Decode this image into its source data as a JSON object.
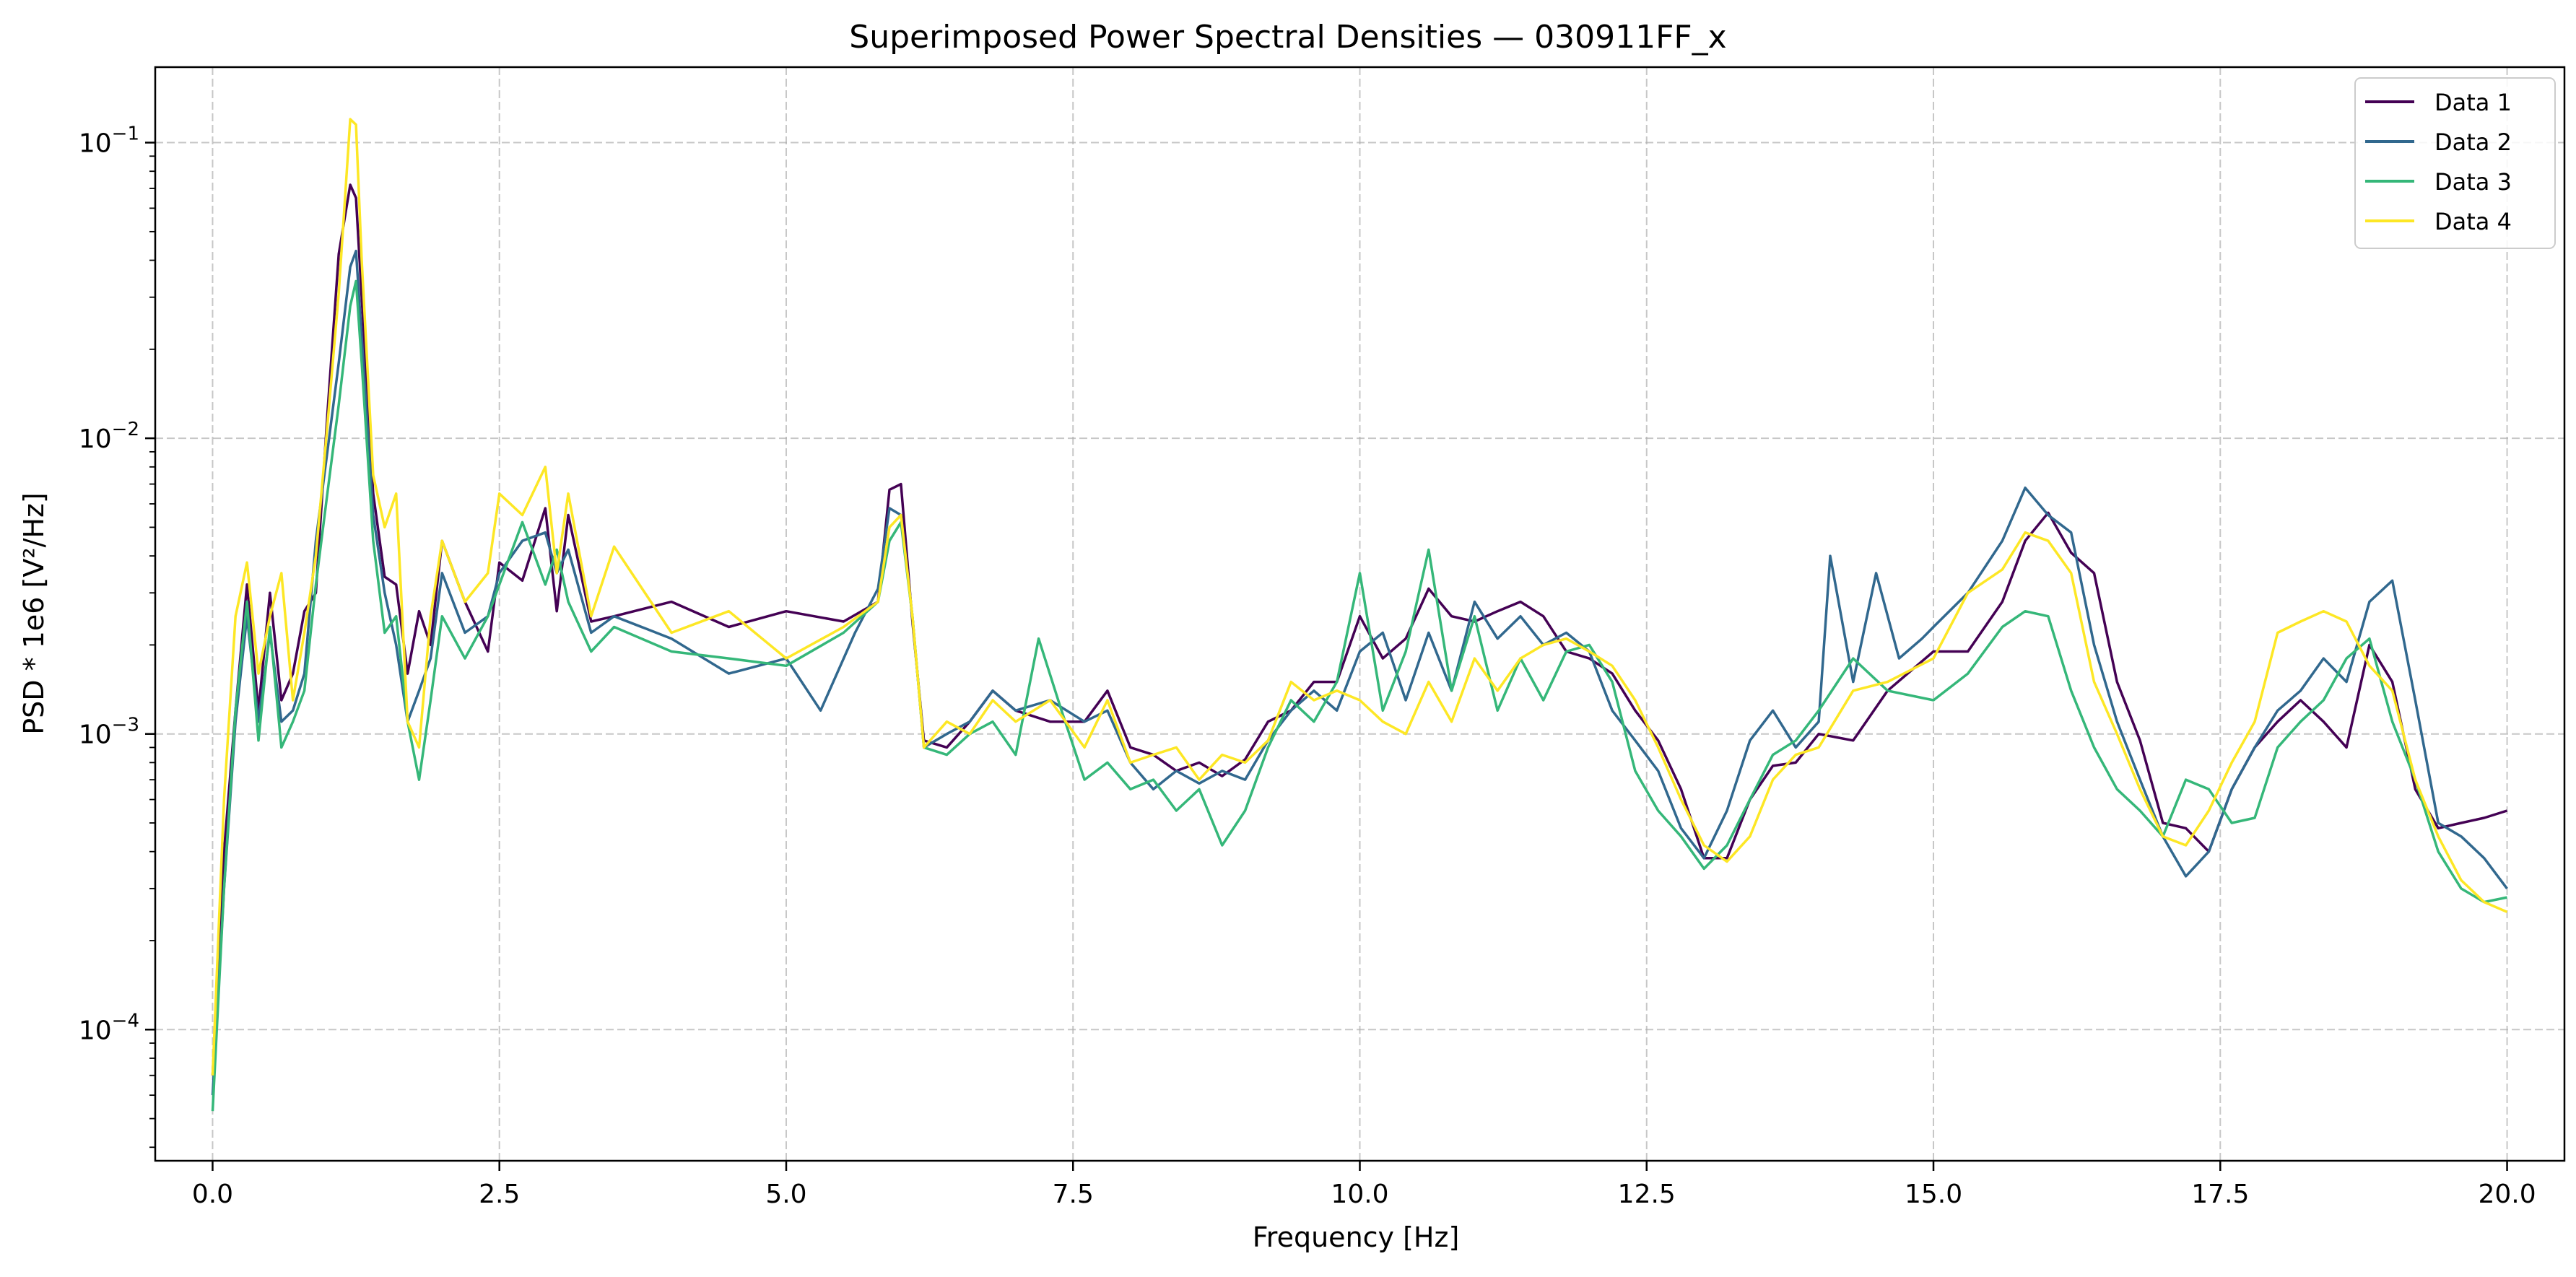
{
  "chart_data": {
    "type": "line",
    "title": "Superimposed Power Spectral Densities — 030911FF_x",
    "xlabel": "Frequency [Hz]",
    "ylabel": "PSD * 1e6 [V²/Hz]",
    "xlim": [
      -0.5,
      20.5
    ],
    "ylim": [
      3.6e-05,
      0.18
    ],
    "yscale": "log",
    "grid": true,
    "legend_position": "top-right",
    "x_ticks": [
      {
        "value": 0.0,
        "label": "0.0"
      },
      {
        "value": 2.5,
        "label": "2.5"
      },
      {
        "value": 5.0,
        "label": "5.0"
      },
      {
        "value": 7.5,
        "label": "7.5"
      },
      {
        "value": 10.0,
        "label": "10.0"
      },
      {
        "value": 12.5,
        "label": "12.5"
      },
      {
        "value": 15.0,
        "label": "15.0"
      },
      {
        "value": 17.5,
        "label": "17.5"
      },
      {
        "value": 20.0,
        "label": "20.0"
      }
    ],
    "y_ticks": [
      {
        "value": 0.0001,
        "base": "10",
        "exp": "−4"
      },
      {
        "value": 0.001,
        "base": "10",
        "exp": "−3"
      },
      {
        "value": 0.01,
        "base": "10",
        "exp": "−2"
      },
      {
        "value": 0.1,
        "base": "10",
        "exp": "−1"
      }
    ],
    "series": [
      {
        "name": "Data 1",
        "color": "#440154",
        "x": [
          0,
          0.1,
          0.2,
          0.3,
          0.4,
          0.5,
          0.6,
          0.7,
          0.8,
          0.9,
          1.0,
          1.1,
          1.2,
          1.25,
          1.3,
          1.4,
          1.5,
          1.6,
          1.7,
          1.8,
          1.9,
          2.0,
          2.2,
          2.4,
          2.5,
          2.7,
          2.9,
          3.0,
          3.1,
          3.3,
          3.5,
          4.0,
          4.5,
          5.0,
          5.5,
          5.8,
          5.9,
          6.0,
          6.1,
          6.2,
          6.4,
          6.6,
          6.8,
          7.0,
          7.3,
          7.6,
          7.8,
          8.0,
          8.2,
          8.4,
          8.6,
          8.8,
          9.0,
          9.2,
          9.4,
          9.6,
          9.8,
          10.0,
          10.2,
          10.4,
          10.6,
          10.8,
          11.0,
          11.2,
          11.4,
          11.6,
          11.8,
          12.0,
          12.2,
          12.4,
          12.6,
          12.8,
          13.0,
          13.2,
          13.4,
          13.6,
          13.8,
          14.0,
          14.3,
          14.6,
          15.0,
          15.3,
          15.6,
          15.8,
          16.0,
          16.2,
          16.4,
          16.6,
          16.8,
          17.0,
          17.2,
          17.4,
          17.6,
          17.8,
          18.0,
          18.2,
          18.4,
          18.6,
          18.8,
          19.0,
          19.2,
          19.4,
          19.6,
          19.8,
          20.0
        ],
        "y": [
          7e-05,
          0.0004,
          0.0012,
          0.0032,
          0.0012,
          0.003,
          0.0013,
          0.0016,
          0.0026,
          0.003,
          0.012,
          0.042,
          0.072,
          0.065,
          0.03,
          0.0065,
          0.0034,
          0.0032,
          0.0016,
          0.0026,
          0.002,
          0.0045,
          0.0028,
          0.0019,
          0.0038,
          0.0033,
          0.0058,
          0.0026,
          0.0055,
          0.0024,
          0.0025,
          0.0028,
          0.0023,
          0.0026,
          0.0024,
          0.0028,
          0.0067,
          0.007,
          0.0024,
          0.00095,
          0.0009,
          0.0011,
          0.0014,
          0.0012,
          0.0011,
          0.0011,
          0.0014,
          0.0009,
          0.00085,
          0.00075,
          0.0008,
          0.00072,
          0.00082,
          0.0011,
          0.0012,
          0.0015,
          0.0015,
          0.0025,
          0.0018,
          0.0021,
          0.0031,
          0.0025,
          0.0024,
          0.0026,
          0.0028,
          0.0025,
          0.0019,
          0.0018,
          0.0016,
          0.0012,
          0.00095,
          0.00065,
          0.00038,
          0.00038,
          0.0006,
          0.00078,
          0.0008,
          0.001,
          0.00095,
          0.0014,
          0.0019,
          0.0019,
          0.0028,
          0.0045,
          0.0056,
          0.0041,
          0.0035,
          0.0015,
          0.00095,
          0.0005,
          0.00048,
          0.0004,
          0.00065,
          0.0009,
          0.0011,
          0.0013,
          0.0011,
          0.0009,
          0.002,
          0.0015,
          0.00065,
          0.00048,
          0.0005,
          0.00052,
          0.00055
        ]
      },
      {
        "name": "Data 2",
        "color": "#31688e",
        "x": [
          0,
          0.1,
          0.2,
          0.3,
          0.4,
          0.5,
          0.6,
          0.7,
          0.8,
          0.9,
          1.0,
          1.1,
          1.2,
          1.25,
          1.3,
          1.4,
          1.5,
          1.6,
          1.7,
          1.8,
          1.9,
          2.0,
          2.2,
          2.4,
          2.5,
          2.7,
          2.9,
          3.0,
          3.1,
          3.3,
          3.5,
          4.0,
          4.5,
          5.0,
          5.3,
          5.6,
          5.8,
          5.9,
          6.0,
          6.1,
          6.2,
          6.4,
          6.6,
          6.8,
          7.0,
          7.3,
          7.6,
          7.8,
          8.0,
          8.2,
          8.4,
          8.6,
          8.8,
          9.0,
          9.2,
          9.4,
          9.6,
          9.8,
          10.0,
          10.2,
          10.4,
          10.6,
          10.8,
          11.0,
          11.2,
          11.4,
          11.6,
          11.8,
          12.0,
          12.2,
          12.4,
          12.6,
          12.8,
          13.0,
          13.2,
          13.4,
          13.6,
          13.8,
          14.0,
          14.1,
          14.3,
          14.5,
          14.7,
          14.9,
          15.0,
          15.3,
          15.6,
          15.8,
          16.0,
          16.2,
          16.4,
          16.6,
          16.8,
          17.0,
          17.2,
          17.4,
          17.6,
          17.8,
          18.0,
          18.2,
          18.4,
          18.6,
          18.8,
          19.0,
          19.2,
          19.4,
          19.6,
          19.8,
          20.0
        ],
        "y": [
          6e-05,
          0.0003,
          0.0011,
          0.0025,
          0.0011,
          0.0022,
          0.0011,
          0.0012,
          0.0016,
          0.0045,
          0.009,
          0.018,
          0.038,
          0.043,
          0.022,
          0.0055,
          0.003,
          0.002,
          0.0011,
          0.0014,
          0.0018,
          0.0035,
          0.0022,
          0.0025,
          0.0035,
          0.0045,
          0.0048,
          0.0035,
          0.0042,
          0.0022,
          0.0025,
          0.0021,
          0.0016,
          0.0018,
          0.0012,
          0.0022,
          0.0031,
          0.0058,
          0.0055,
          0.0025,
          0.0009,
          0.001,
          0.0011,
          0.0014,
          0.0012,
          0.0013,
          0.0011,
          0.0012,
          0.0008,
          0.00065,
          0.00075,
          0.00068,
          0.00075,
          0.0007,
          0.00095,
          0.0012,
          0.0014,
          0.0012,
          0.0019,
          0.0022,
          0.0013,
          0.0022,
          0.0014,
          0.0028,
          0.0021,
          0.0025,
          0.002,
          0.0022,
          0.0019,
          0.0012,
          0.00095,
          0.00075,
          0.00048,
          0.00038,
          0.00055,
          0.00095,
          0.0012,
          0.0009,
          0.0011,
          0.004,
          0.0015,
          0.0035,
          0.0018,
          0.0021,
          0.0023,
          0.003,
          0.0045,
          0.0068,
          0.0055,
          0.0048,
          0.002,
          0.0011,
          0.0007,
          0.00045,
          0.00033,
          0.0004,
          0.00065,
          0.0009,
          0.0012,
          0.0014,
          0.0018,
          0.0015,
          0.0028,
          0.0033,
          0.0013,
          0.0005,
          0.00045,
          0.00038,
          0.0003
        ]
      },
      {
        "name": "Data 3",
        "color": "#35b779",
        "x": [
          0,
          0.1,
          0.2,
          0.3,
          0.4,
          0.5,
          0.6,
          0.7,
          0.8,
          0.9,
          1.0,
          1.1,
          1.2,
          1.25,
          1.3,
          1.4,
          1.5,
          1.6,
          1.7,
          1.8,
          1.9,
          2.0,
          2.2,
          2.4,
          2.5,
          2.7,
          2.9,
          3.0,
          3.1,
          3.3,
          3.5,
          4.0,
          4.5,
          5.0,
          5.5,
          5.8,
          5.9,
          6.0,
          6.1,
          6.2,
          6.4,
          6.6,
          6.8,
          7.0,
          7.2,
          7.4,
          7.6,
          7.8,
          8.0,
          8.2,
          8.4,
          8.6,
          8.8,
          9.0,
          9.2,
          9.4,
          9.6,
          9.8,
          10.0,
          10.2,
          10.4,
          10.6,
          10.8,
          11.0,
          11.2,
          11.4,
          11.6,
          11.8,
          12.0,
          12.2,
          12.4,
          12.6,
          12.8,
          13.0,
          13.2,
          13.4,
          13.6,
          13.8,
          14.0,
          14.3,
          14.6,
          15.0,
          15.3,
          15.6,
          15.8,
          16.0,
          16.2,
          16.4,
          16.6,
          16.8,
          17.0,
          17.2,
          17.4,
          17.6,
          17.8,
          18.0,
          18.2,
          18.4,
          18.6,
          18.8,
          19.0,
          19.2,
          19.4,
          19.6,
          19.8,
          20.0
        ],
        "y": [
          5.3e-05,
          0.0003,
          0.0012,
          0.0028,
          0.00095,
          0.0023,
          0.0009,
          0.0011,
          0.0014,
          0.0032,
          0.0065,
          0.013,
          0.028,
          0.034,
          0.018,
          0.0045,
          0.0022,
          0.0025,
          0.0011,
          0.0007,
          0.0013,
          0.0025,
          0.0018,
          0.0025,
          0.0032,
          0.0052,
          0.0032,
          0.0042,
          0.0028,
          0.0019,
          0.0023,
          0.0019,
          0.0018,
          0.0017,
          0.0022,
          0.0028,
          0.0045,
          0.0052,
          0.0025,
          0.0009,
          0.00085,
          0.001,
          0.0011,
          0.00085,
          0.0021,
          0.0012,
          0.0007,
          0.0008,
          0.00065,
          0.0007,
          0.00055,
          0.00065,
          0.00042,
          0.00055,
          0.0009,
          0.0013,
          0.0011,
          0.0015,
          0.0035,
          0.0012,
          0.0019,
          0.0042,
          0.0014,
          0.0025,
          0.0012,
          0.0018,
          0.0013,
          0.0019,
          0.002,
          0.0015,
          0.00075,
          0.00055,
          0.00045,
          0.00035,
          0.00042,
          0.0006,
          0.00085,
          0.00095,
          0.0012,
          0.0018,
          0.0014,
          0.0013,
          0.0016,
          0.0023,
          0.0026,
          0.0025,
          0.0014,
          0.0009,
          0.00065,
          0.00055,
          0.00045,
          0.0007,
          0.00065,
          0.0005,
          0.00052,
          0.0009,
          0.0011,
          0.0013,
          0.0018,
          0.0021,
          0.0011,
          0.0007,
          0.0004,
          0.0003,
          0.00027,
          0.00028
        ]
      },
      {
        "name": "Data 4",
        "color": "#fde725",
        "x": [
          0,
          0.1,
          0.2,
          0.3,
          0.4,
          0.5,
          0.6,
          0.7,
          0.8,
          0.9,
          1.0,
          1.1,
          1.2,
          1.25,
          1.3,
          1.4,
          1.5,
          1.6,
          1.7,
          1.8,
          1.9,
          2.0,
          2.2,
          2.4,
          2.5,
          2.7,
          2.9,
          3.0,
          3.1,
          3.3,
          3.5,
          4.0,
          4.5,
          5.0,
          5.5,
          5.8,
          5.9,
          6.0,
          6.1,
          6.2,
          6.4,
          6.6,
          6.8,
          7.0,
          7.3,
          7.6,
          7.8,
          8.0,
          8.2,
          8.4,
          8.6,
          8.8,
          9.0,
          9.2,
          9.4,
          9.6,
          9.8,
          10.0,
          10.2,
          10.4,
          10.6,
          10.8,
          11.0,
          11.2,
          11.4,
          11.6,
          11.8,
          12.0,
          12.2,
          12.4,
          12.6,
          12.8,
          13.0,
          13.2,
          13.4,
          13.6,
          13.8,
          14.0,
          14.3,
          14.6,
          15.0,
          15.3,
          15.6,
          15.8,
          16.0,
          16.2,
          16.4,
          16.6,
          16.8,
          17.0,
          17.2,
          17.4,
          17.6,
          17.8,
          18.0,
          18.2,
          18.4,
          18.6,
          18.8,
          19.0,
          19.2,
          19.4,
          19.6,
          19.8,
          20.0
        ],
        "y": [
          7e-05,
          0.0006,
          0.0025,
          0.0038,
          0.0016,
          0.0025,
          0.0035,
          0.0013,
          0.0022,
          0.004,
          0.011,
          0.031,
          0.12,
          0.115,
          0.04,
          0.0075,
          0.005,
          0.0065,
          0.0011,
          0.0009,
          0.0025,
          0.0045,
          0.0028,
          0.0035,
          0.0065,
          0.0055,
          0.008,
          0.0035,
          0.0065,
          0.0025,
          0.0043,
          0.0022,
          0.0026,
          0.0018,
          0.0023,
          0.0028,
          0.005,
          0.0055,
          0.0025,
          0.0009,
          0.0011,
          0.001,
          0.0013,
          0.0011,
          0.0013,
          0.0009,
          0.0013,
          0.0008,
          0.00085,
          0.0009,
          0.0007,
          0.00085,
          0.0008,
          0.00095,
          0.0015,
          0.0013,
          0.0014,
          0.0013,
          0.0011,
          0.001,
          0.0015,
          0.0011,
          0.0018,
          0.0014,
          0.0018,
          0.002,
          0.0021,
          0.0019,
          0.0017,
          0.0013,
          0.0009,
          0.0006,
          0.00042,
          0.00037,
          0.00045,
          0.0007,
          0.00085,
          0.0009,
          0.0014,
          0.0015,
          0.0018,
          0.003,
          0.0036,
          0.0048,
          0.0045,
          0.0035,
          0.0015,
          0.001,
          0.00065,
          0.00045,
          0.00042,
          0.00055,
          0.0008,
          0.0011,
          0.0022,
          0.0024,
          0.0026,
          0.0024,
          0.0017,
          0.0014,
          0.0007,
          0.00045,
          0.00032,
          0.00027,
          0.00025
        ]
      }
    ]
  }
}
